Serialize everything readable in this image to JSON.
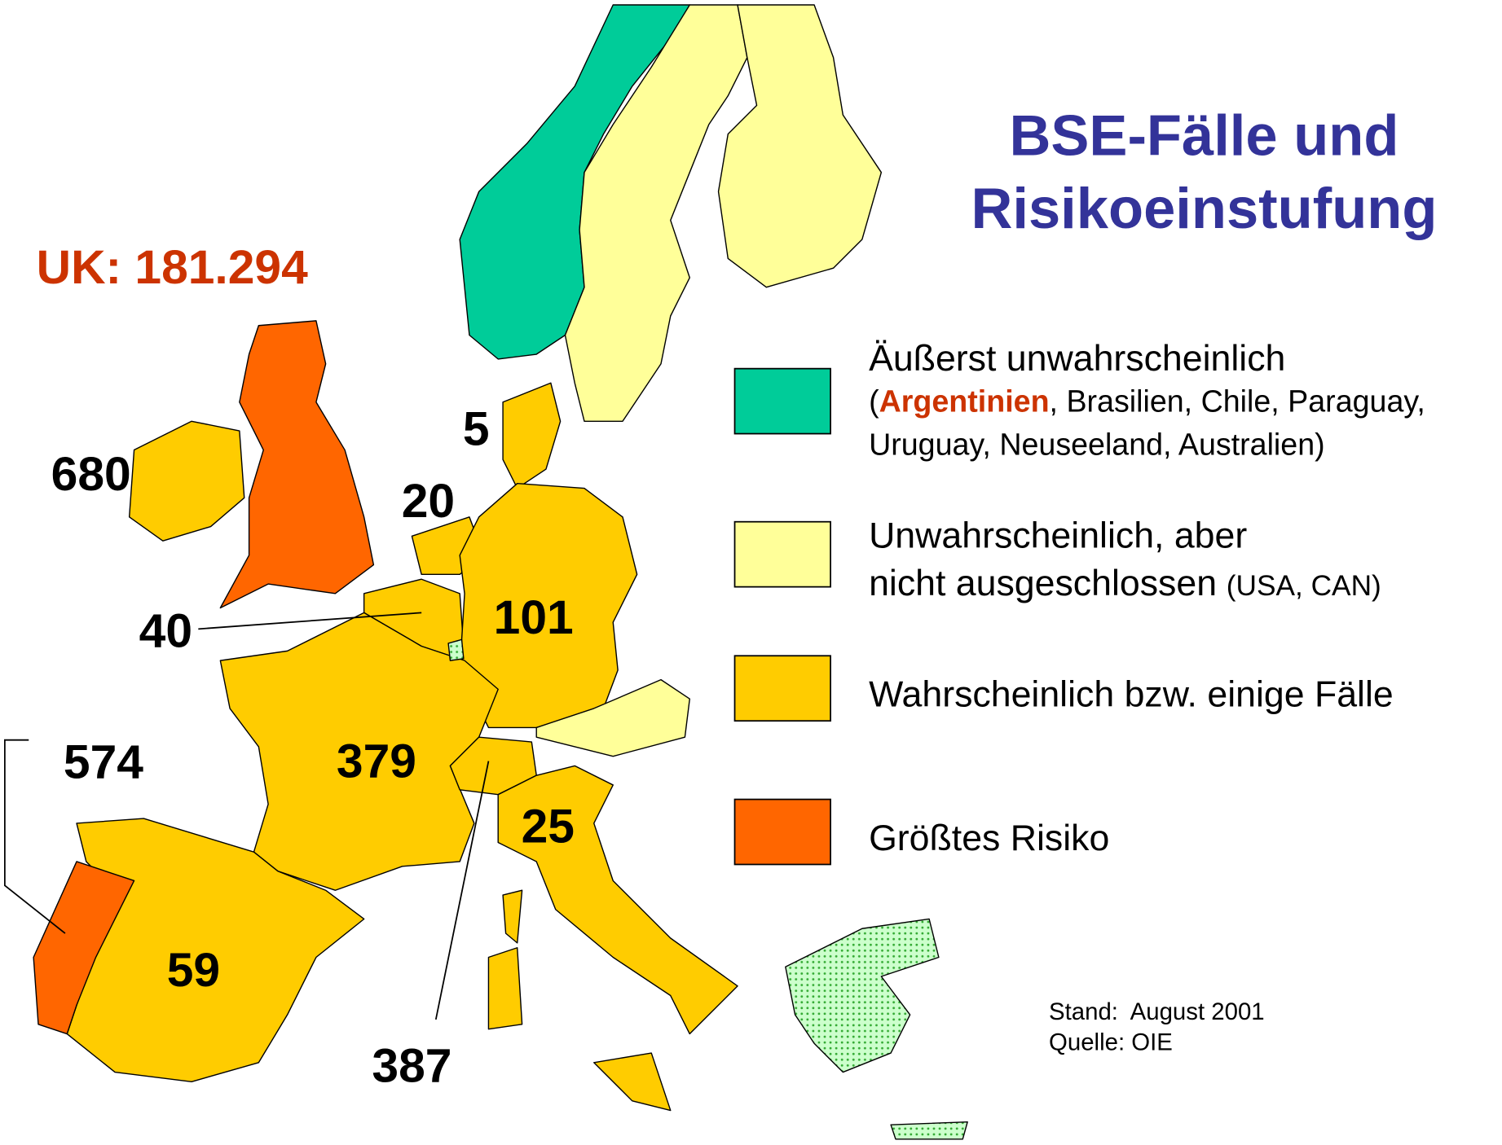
{
  "title": [
    "BSE-Fälle und",
    "Risikoeinstufung"
  ],
  "uk_label": "UK: 181.294",
  "country_labels": {
    "ireland": 680,
    "denmark": 5,
    "netherlands": 20,
    "belgium": 40,
    "germany": 101,
    "france": 379,
    "portugal": 574,
    "italy": 25,
    "spain": 59,
    "switzerland": 387
  },
  "legend": {
    "items": [
      {
        "color": "#00cc99",
        "label": "Äußerst unwahrscheinlich",
        "note_parts": [
          "(",
          "Argentinien",
          ", Brasilien, Chile, Paraguay,"
        ],
        "note_line2": "Uruguay, Neuseeland, Australien)"
      },
      {
        "color": "#ffff99",
        "label": "Unwahrscheinlich, aber",
        "label_line2": "nicht ausgeschlossen",
        "note": "(USA, CAN)"
      },
      {
        "color": "#ffcc00",
        "label": "Wahrscheinlich bzw. einige Fälle"
      },
      {
        "color": "#ff6600",
        "label": "Größtes Risiko"
      }
    ]
  },
  "source": [
    "Stand:  August 2001",
    "Quelle: OIE"
  ]
}
